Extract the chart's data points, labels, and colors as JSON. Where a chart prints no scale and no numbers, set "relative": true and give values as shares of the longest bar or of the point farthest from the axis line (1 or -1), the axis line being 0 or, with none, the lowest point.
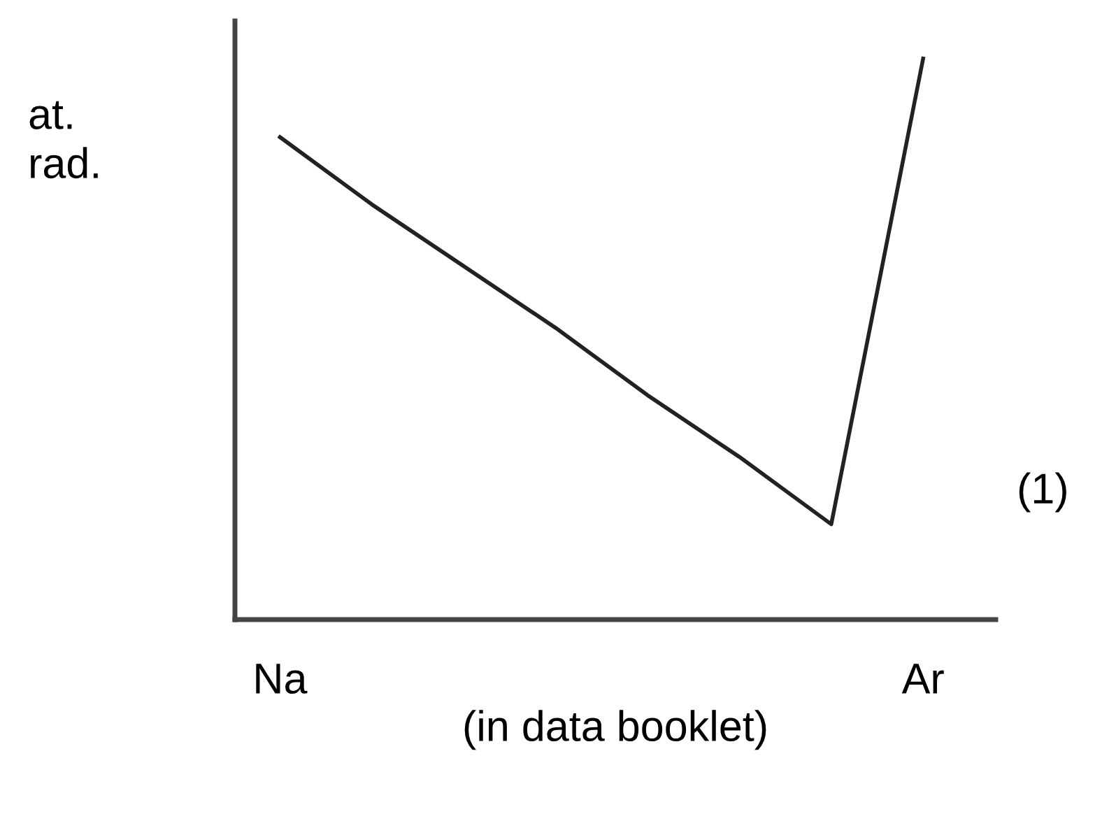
{
  "chart_data": {
    "type": "line",
    "relative": true,
    "categories": [
      "Na",
      null,
      null,
      null,
      null,
      null,
      null,
      "Ar"
    ],
    "values": [
      0.86,
      0.74,
      0.63,
      0.52,
      0.4,
      0.29,
      0.17,
      1
    ],
    "color": "#222222",
    "ylabel": "at.\nrad.",
    "xlabel": "(in data booklet)",
    "annotations": [
      "(1)"
    ],
    "grid": false,
    "marker": "none",
    "line_style": "solid"
  }
}
